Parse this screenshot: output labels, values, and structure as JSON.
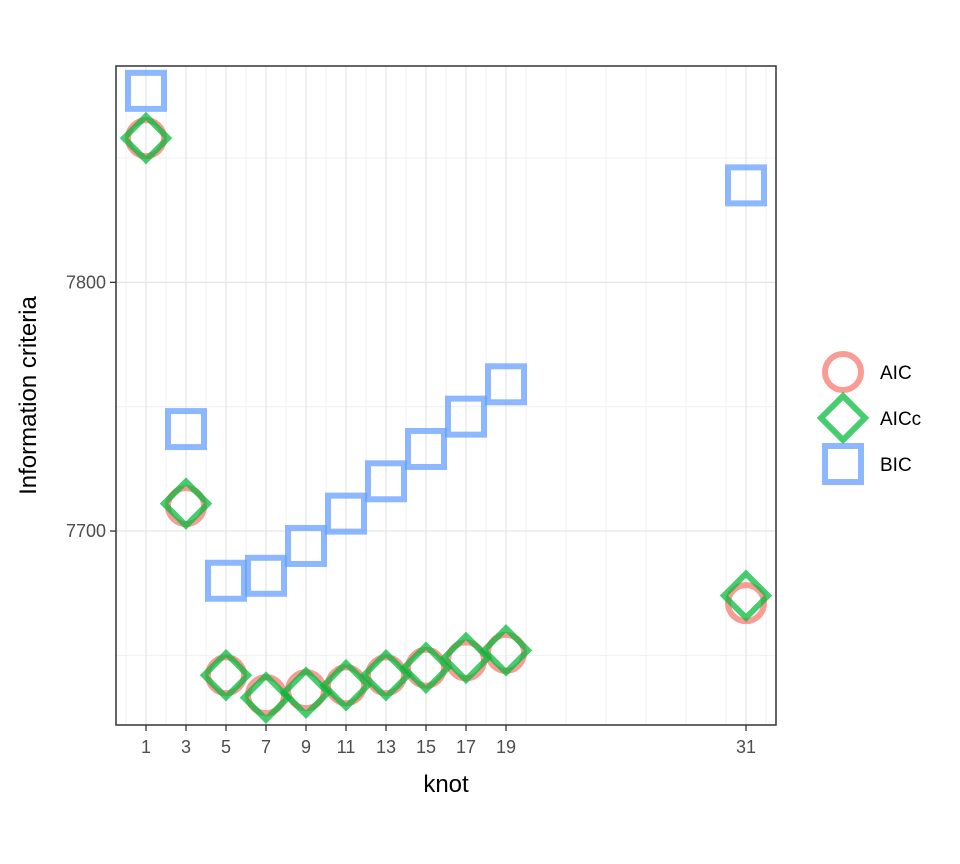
{
  "chart_data": {
    "type": "scatter",
    "xlabel": "knot",
    "ylabel": "Information criteria",
    "xlim": [
      -0.5,
      32.5
    ],
    "ylim": [
      7622,
      7887
    ],
    "x_ticks": [
      1,
      3,
      5,
      7,
      9,
      11,
      13,
      15,
      17,
      19,
      31
    ],
    "y_ticks": [
      7700,
      7800
    ],
    "y_minor": [
      7650,
      7750,
      7850
    ],
    "grid": true,
    "legend_position": "right",
    "series": [
      {
        "name": "AIC",
        "shape": "circle",
        "color": "#f8766d",
        "x": [
          1,
          3,
          5,
          7,
          9,
          11,
          13,
          15,
          17,
          19,
          31
        ],
        "y": [
          7858,
          7710,
          7642,
          7634,
          7636,
          7638,
          7642,
          7645,
          7648,
          7651,
          7671
        ]
      },
      {
        "name": "AICc",
        "shape": "diamond",
        "color": "#00ba38",
        "x": [
          1,
          3,
          5,
          7,
          9,
          11,
          13,
          15,
          17,
          19,
          31
        ],
        "y": [
          7858,
          7711,
          7642,
          7633,
          7635,
          7638,
          7642,
          7645,
          7649,
          7652,
          7674
        ]
      },
      {
        "name": "BIC",
        "shape": "square",
        "color": "#619cff",
        "x": [
          1,
          3,
          5,
          7,
          9,
          11,
          13,
          15,
          17,
          19,
          31
        ],
        "y": [
          7877,
          7741,
          7680,
          7682,
          7694,
          7707,
          7720,
          7733,
          7746,
          7759,
          7839
        ]
      }
    ]
  }
}
